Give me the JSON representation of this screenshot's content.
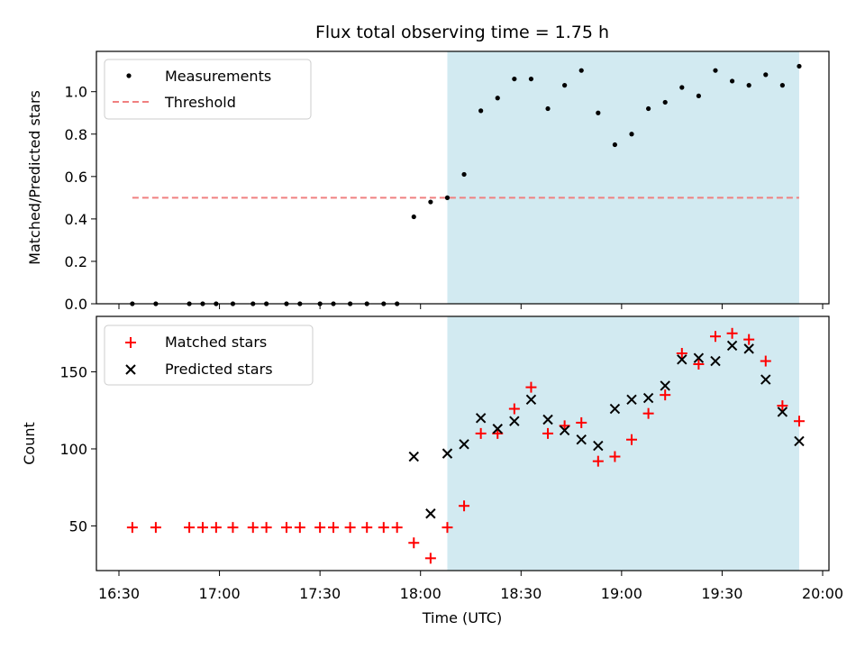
{
  "title": "Flux total observing time = 1.75 h",
  "colors": {
    "measurement": "#000000",
    "threshold": "#f08080",
    "matched": "#ff0000",
    "predicted": "#000000",
    "shade": "#add8e6"
  },
  "chart_data": [
    {
      "type": "scatter",
      "ylabel": "Matched/Predicted stars",
      "ylim": [
        0,
        1.19
      ],
      "yticks": [
        0.0,
        0.2,
        0.4,
        0.6,
        0.8,
        1.0
      ],
      "ytick_labels": [
        "0.0",
        "0.2",
        "0.4",
        "0.6",
        "0.8",
        "1.0"
      ],
      "shaded_range": [
        "18:08",
        "19:53"
      ],
      "threshold": 0.5,
      "threshold_range": [
        "16:34",
        "19:53"
      ],
      "legend": {
        "position": "top-left",
        "entries": [
          "Measurements",
          "Threshold"
        ]
      },
      "series": [
        {
          "name": "Measurements",
          "x": [
            "16:34",
            "16:41",
            "16:51",
            "16:55",
            "16:59",
            "17:04",
            "17:10",
            "17:14",
            "17:20",
            "17:24",
            "17:30",
            "17:34",
            "17:39",
            "17:44",
            "17:49",
            "17:53",
            "17:58",
            "18:03",
            "18:08",
            "18:13",
            "18:18",
            "18:23",
            "18:28",
            "18:33",
            "18:38",
            "18:43",
            "18:48",
            "18:53",
            "18:58",
            "19:03",
            "19:08",
            "19:13",
            "19:18",
            "19:23",
            "19:28",
            "19:33",
            "19:38",
            "19:43",
            "19:48",
            "19:53"
          ],
          "y": [
            0,
            0,
            0,
            0,
            0,
            0,
            0,
            0,
            0,
            0,
            0,
            0,
            0,
            0,
            0,
            0,
            0.41,
            0.48,
            0.5,
            0.61,
            0.91,
            0.97,
            1.06,
            1.06,
            0.92,
            1.03,
            1.1,
            0.9,
            0.75,
            0.8,
            0.92,
            0.95,
            1.02,
            0.98,
            1.1,
            1.05,
            1.03,
            1.08,
            1.03,
            1.12
          ]
        },
        {
          "name": "Threshold",
          "y": 0.5
        }
      ]
    },
    {
      "type": "scatter",
      "xlabel": "Time (UTC)",
      "ylabel": "Count",
      "ylim": [
        21,
        186
      ],
      "yticks": [
        50,
        100,
        150
      ],
      "xticks": [
        "16:30",
        "17:00",
        "17:30",
        "18:00",
        "18:30",
        "19:00",
        "19:30",
        "20:00"
      ],
      "shaded_range": [
        "18:08",
        "19:53"
      ],
      "legend": {
        "position": "top-left",
        "entries": [
          "Matched stars",
          "Predicted stars"
        ]
      },
      "series": [
        {
          "name": "Matched stars",
          "x": [
            "16:34",
            "16:41",
            "16:51",
            "16:55",
            "16:59",
            "17:04",
            "17:10",
            "17:14",
            "17:20",
            "17:24",
            "17:30",
            "17:34",
            "17:39",
            "17:44",
            "17:49",
            "17:53",
            "17:58",
            "18:03",
            "18:08",
            "18:13",
            "18:18",
            "18:23",
            "18:28",
            "18:33",
            "18:38",
            "18:43",
            "18:48",
            "18:53",
            "18:58",
            "19:03",
            "19:08",
            "19:13",
            "19:18",
            "19:23",
            "19:28",
            "19:33",
            "19:38",
            "19:43",
            "19:48",
            "19:53"
          ],
          "y": [
            49,
            49,
            49,
            49,
            49,
            49,
            49,
            49,
            49,
            49,
            49,
            49,
            49,
            49,
            49,
            49,
            39,
            29,
            49,
            63,
            110,
            110,
            126,
            140,
            110,
            115,
            117,
            92,
            95,
            106,
            123,
            135,
            162,
            155,
            173,
            175,
            171,
            157,
            128,
            118
          ]
        },
        {
          "name": "Predicted stars",
          "x": [
            "17:58",
            "18:03",
            "18:08",
            "18:13",
            "18:18",
            "18:23",
            "18:28",
            "18:33",
            "18:38",
            "18:43",
            "18:48",
            "18:53",
            "18:58",
            "19:03",
            "19:08",
            "19:13",
            "19:18",
            "19:23",
            "19:28",
            "19:33",
            "19:38",
            "19:43",
            "19:48",
            "19:53"
          ],
          "y": [
            95,
            58,
            97,
            103,
            120,
            113,
            118,
            132,
            119,
            112,
            106,
            102,
            126,
            132,
            133,
            141,
            158,
            159,
            157,
            167,
            165,
            145,
            124,
            105
          ]
        }
      ]
    }
  ]
}
